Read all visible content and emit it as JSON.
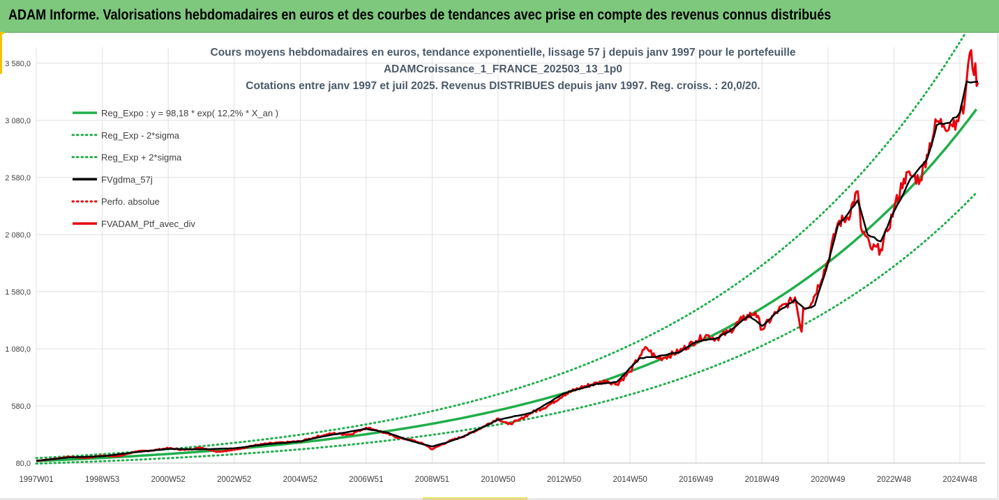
{
  "banner": {
    "title": "ADAM Informe. Valorisations hebdomadaires en euros et des courbes de tendances avec prise en compte des revenus connus distribués"
  },
  "colors": {
    "banner": "#7ec87e",
    "reg_expo": "#1fae4b",
    "fvgdma": "#000000",
    "fvadam": "#e8000b",
    "perfo": "#e8000b"
  },
  "chart_data": {
    "type": "line",
    "title_lines": [
      "Cours moyens hebdomadaires  en euros, tendance exponentielle, lissage 57 j depuis janv 1997 pour le portefeuille",
      "ADAMCroissance_1_FRANCE_202503_13_1p0",
      "Cotations  entre janv 1997 et juil 2025. Revenus DISTRIBUES depuis janv 1997. Reg. croiss. : 20,0/20."
    ],
    "x_tick_labels": [
      "1997W01",
      "1998W53",
      "2000W52",
      "2002W52",
      "2004W52",
      "2006W51",
      "2008W51",
      "2010W50",
      "2012W50",
      "2014W50",
      "2016W49",
      "2018W49",
      "2020W49",
      "2022W48",
      "2024W48"
    ],
    "x_tick_years": [
      1997,
      1999,
      2001,
      2003,
      2005,
      2007,
      2009,
      2011,
      2013,
      2015,
      2017,
      2019,
      2021,
      2023,
      2025
    ],
    "x_range": [
      1997,
      2025.55
    ],
    "y_range": [
      80,
      3780
    ],
    "y_ticks": [
      "80,0",
      "580,0",
      "1 080,0",
      "1 580,0",
      "2 080,0",
      "2 580,0",
      "3 080,0",
      "3 580,0"
    ],
    "y_tick_values": [
      80,
      580,
      1080,
      1580,
      2080,
      2580,
      3080,
      3580
    ],
    "grid": "vertical-and-horizontal",
    "legend_position": "top-left",
    "legend": [
      {
        "name": "Reg_Expo : y = 98,18 * exp( 12,2% *  X_an )",
        "style": "solid",
        "color": "#1fae4b"
      },
      {
        "name": "Reg_Exp - 2*sigma",
        "style": "dotted",
        "color": "#1fae4b"
      },
      {
        "name": "Reg_Exp + 2*sigma",
        "style": "dotted",
        "color": "#1fae4b"
      },
      {
        "name": "FVgdma_57j",
        "style": "solid",
        "color": "#000000"
      },
      {
        "name": "Perfo. absolue",
        "style": "dotted",
        "color": "#e8000b"
      },
      {
        "name": "FVADAM_Ptf_avec_div",
        "style": "solid",
        "color": "#e8000b"
      }
    ],
    "series": [
      {
        "name": "FVADAM_Ptf_avec_div",
        "x": [
          1997,
          1997.5,
          1998,
          1998.5,
          1999,
          1999.5,
          2000,
          2000.5,
          2001,
          2001.5,
          2002,
          2002.5,
          2003,
          2003.5,
          2004,
          2004.5,
          2005,
          2005.5,
          2006,
          2006.5,
          2007,
          2007.3,
          2007.6,
          2008,
          2008.4,
          2008.8,
          2009,
          2009.2,
          2009.5,
          2010,
          2010.5,
          2011,
          2011.3,
          2011.6,
          2012,
          2012.5,
          2013,
          2013.5,
          2014,
          2014.3,
          2014.6,
          2015,
          2015.3,
          2015.5,
          2015.8,
          2016,
          2016.5,
          2017,
          2017.3,
          2017.6,
          2018,
          2018.4,
          2018.8,
          2019,
          2019.5,
          2019.9,
          2020,
          2020.2,
          2020.25,
          2020.5,
          2021,
          2021.3,
          2021.6,
          2021.9,
          2022,
          2022.3,
          2022.6,
          2022.8,
          2023,
          2023.3,
          2023.5,
          2023.8,
          2024,
          2024.3,
          2024.5,
          2024.7,
          2024.9,
          2025,
          2025.1,
          2025.2,
          2025.3,
          2025.55
        ],
        "values": [
          100,
          115,
          135,
          125,
          145,
          140,
          180,
          190,
          210,
          195,
          215,
          180,
          195,
          230,
          250,
          260,
          270,
          310,
          340,
          330,
          390,
          370,
          340,
          300,
          280,
          240,
          200,
          230,
          270,
          320,
          390,
          470,
          420,
          450,
          520,
          580,
          680,
          740,
          780,
          800,
          770,
          880,
          1020,
          1090,
          1000,
          1000,
          1060,
          1150,
          1200,
          1170,
          1230,
          1340,
          1400,
          1250,
          1420,
          1500,
          1530,
          1230,
          1440,
          1480,
          1850,
          2180,
          2230,
          2460,
          2140,
          1960,
          1950,
          2110,
          2300,
          2570,
          2600,
          2560,
          2780,
          3070,
          3040,
          3050,
          3080,
          3150,
          3140,
          3420,
          3670,
          3410
        ]
      },
      {
        "name": "FVgdma_57j",
        "x": [
          1997,
          1998,
          1999,
          2000,
          2001,
          2002,
          2003,
          2004,
          2005,
          2006,
          2007,
          2007.6,
          2008.4,
          2009,
          2009.5,
          2010,
          2011,
          2012,
          2013,
          2014,
          2014.6,
          2015.3,
          2015.8,
          2016.5,
          2017,
          2017.6,
          2018,
          2018.6,
          2019,
          2019.5,
          2020,
          2020.3,
          2020.6,
          2021,
          2021.3,
          2021.6,
          2021.9,
          2022.2,
          2022.6,
          2023,
          2023.5,
          2024,
          2024.3,
          2024.7,
          2025,
          2025.2,
          2025.55
        ],
        "values": [
          100,
          130,
          140,
          175,
          205,
          200,
          210,
          245,
          270,
          330,
          380,
          350,
          270,
          225,
          265,
          320,
          460,
          520,
          690,
          775,
          790,
          1000,
          1010,
          1050,
          1140,
          1170,
          1230,
          1370,
          1280,
          1410,
          1510,
          1430,
          1460,
          1830,
          2160,
          2260,
          2380,
          2080,
          2020,
          2280,
          2570,
          2740,
          3040,
          3060,
          3150,
          3420,
          3420
        ]
      }
    ],
    "trend": {
      "name": "Reg_Expo : y = 98,18 * exp( 12,2% *  X_an )",
      "a": 98.18,
      "b": 0.122,
      "lower_factor": 0.77,
      "upper_factor": 1.26
    }
  }
}
